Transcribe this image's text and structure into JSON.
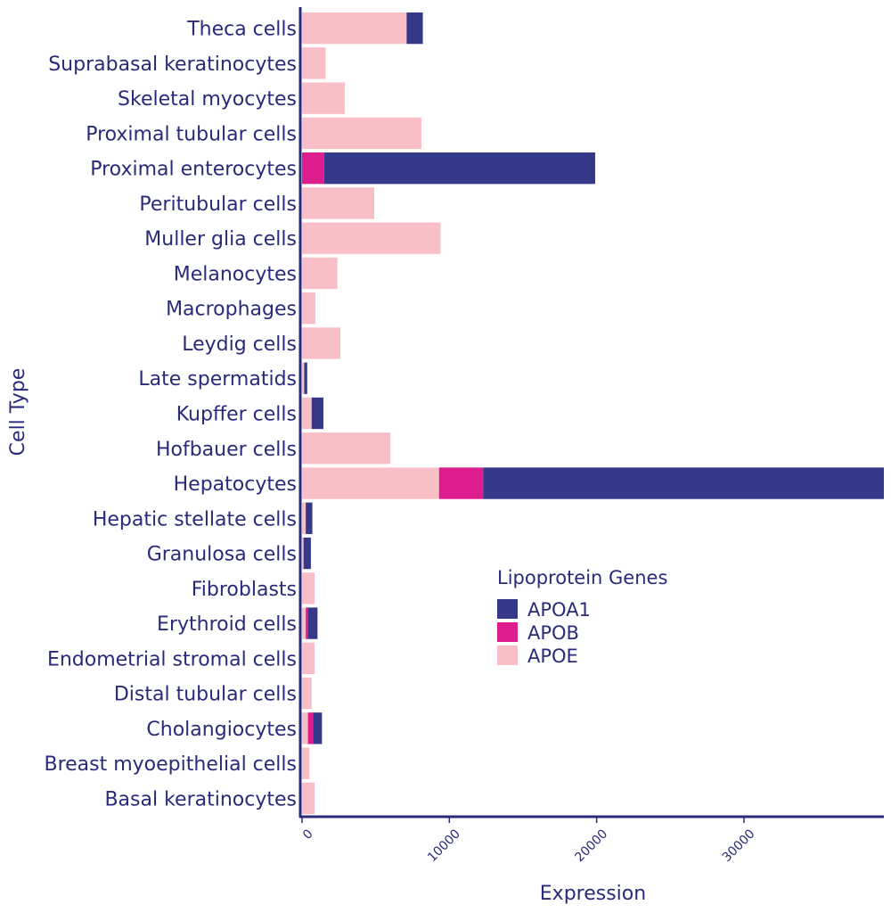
{
  "chart_data": {
    "type": "bar",
    "orientation": "horizontal",
    "stacked": true,
    "xlabel": "Expression",
    "ylabel": "Cell Type",
    "xlim": [
      0,
      39500
    ],
    "xticks": [
      0,
      10000,
      20000,
      30000
    ],
    "grid": false,
    "legend": {
      "title": "Lipoprotein Genes",
      "placement": "center-right"
    },
    "categories": [
      "Theca cells",
      "Suprabasal keratinocytes",
      "Skeletal myocytes",
      "Proximal tubular cells",
      "Proximal enterocytes",
      "Peritubular cells",
      "Muller glia cells",
      "Melanocytes",
      "Macrophages",
      "Leydig cells",
      "Late spermatids",
      "Kupffer cells",
      "Hofbauer cells",
      "Hepatocytes",
      "Hepatic stellate cells",
      "Granulosa cells",
      "Fibroblasts",
      "Erythroid cells",
      "Endometrial stromal cells",
      "Distal tubular cells",
      "Cholangiocytes",
      "Breast myoepithelial cells",
      "Basal keratinocytes"
    ],
    "series": [
      {
        "name": "APOE",
        "color": "#f9bfc6",
        "values": [
          7100,
          1600,
          2900,
          8100,
          0,
          4900,
          9400,
          2400,
          900,
          2600,
          150,
          650,
          6000,
          9300,
          250,
          100,
          850,
          250,
          850,
          650,
          400,
          500,
          850
        ]
      },
      {
        "name": "APOB",
        "color": "#dd1c8d",
        "values": [
          0,
          0,
          0,
          0,
          1500,
          0,
          0,
          0,
          0,
          0,
          0,
          0,
          0,
          3000,
          0,
          0,
          0,
          150,
          0,
          0,
          350,
          0,
          0
        ]
      },
      {
        "name": "APOA1",
        "color": "#36388a",
        "values": [
          1100,
          0,
          0,
          0,
          18400,
          0,
          0,
          0,
          0,
          0,
          200,
          800,
          0,
          27200,
          450,
          500,
          0,
          650,
          0,
          0,
          600,
          0,
          0
        ]
      }
    ],
    "legend_order": [
      "APOA1",
      "APOB",
      "APOE"
    ]
  }
}
